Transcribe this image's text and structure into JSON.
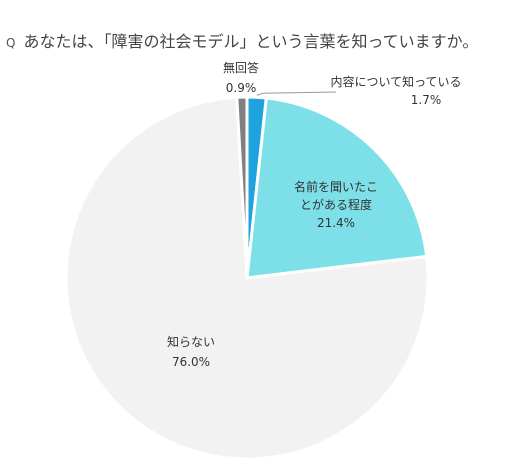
{
  "question": {
    "marker": "Q",
    "text": "あなたは、「障害の社会モデル」という言葉を知っていますか。"
  },
  "chart_data": {
    "type": "pie",
    "title": "",
    "slices": [
      {
        "label": "内容について知っている",
        "value": 1.7,
        "display": "1.7%",
        "color": "#1fa3dd"
      },
      {
        "label": "名前を聞いたことがある程度",
        "value": 21.4,
        "display": "21.4%",
        "color": "#7de0e8"
      },
      {
        "label": "知らない",
        "value": 76.0,
        "display": "76.0%",
        "color": "#f2f2f2"
      },
      {
        "label": "無回答",
        "value": 0.9,
        "display": "0.9%",
        "color": "#808080"
      }
    ]
  }
}
